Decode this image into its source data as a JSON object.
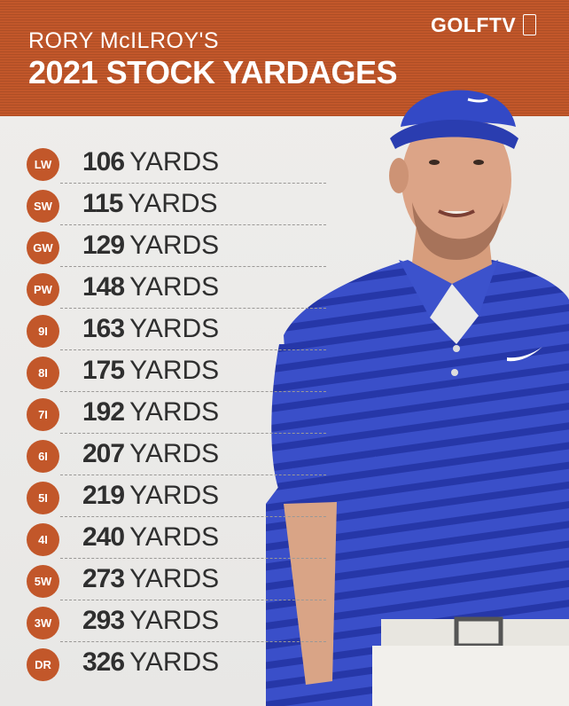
{
  "header": {
    "title_line1": "RORY McILROY'S",
    "title_line2": "2021 STOCK YARDAGES",
    "brand": "GOLFTV"
  },
  "colors": {
    "accent": "#c2572a",
    "text": "#2f2f2f",
    "shirt": "#3a4fc9"
  },
  "yardages": [
    {
      "club": "LW",
      "yards": "106",
      "unit": "YARDS"
    },
    {
      "club": "SW",
      "yards": "115",
      "unit": "YARDS"
    },
    {
      "club": "GW",
      "yards": "129",
      "unit": "YARDS"
    },
    {
      "club": "PW",
      "yards": "148",
      "unit": "YARDS"
    },
    {
      "club": "9I",
      "yards": "163",
      "unit": "YARDS"
    },
    {
      "club": "8I",
      "yards": "175",
      "unit": "YARDS"
    },
    {
      "club": "7I",
      "yards": "192",
      "unit": "YARDS"
    },
    {
      "club": "6I",
      "yards": "207",
      "unit": "YARDS"
    },
    {
      "club": "5I",
      "yards": "219",
      "unit": "YARDS"
    },
    {
      "club": "4I",
      "yards": "240",
      "unit": "YARDS"
    },
    {
      "club": "5W",
      "yards": "273",
      "unit": "YARDS"
    },
    {
      "club": "3W",
      "yards": "293",
      "unit": "YARDS"
    },
    {
      "club": "DR",
      "yards": "326",
      "unit": "YARDS"
    }
  ]
}
